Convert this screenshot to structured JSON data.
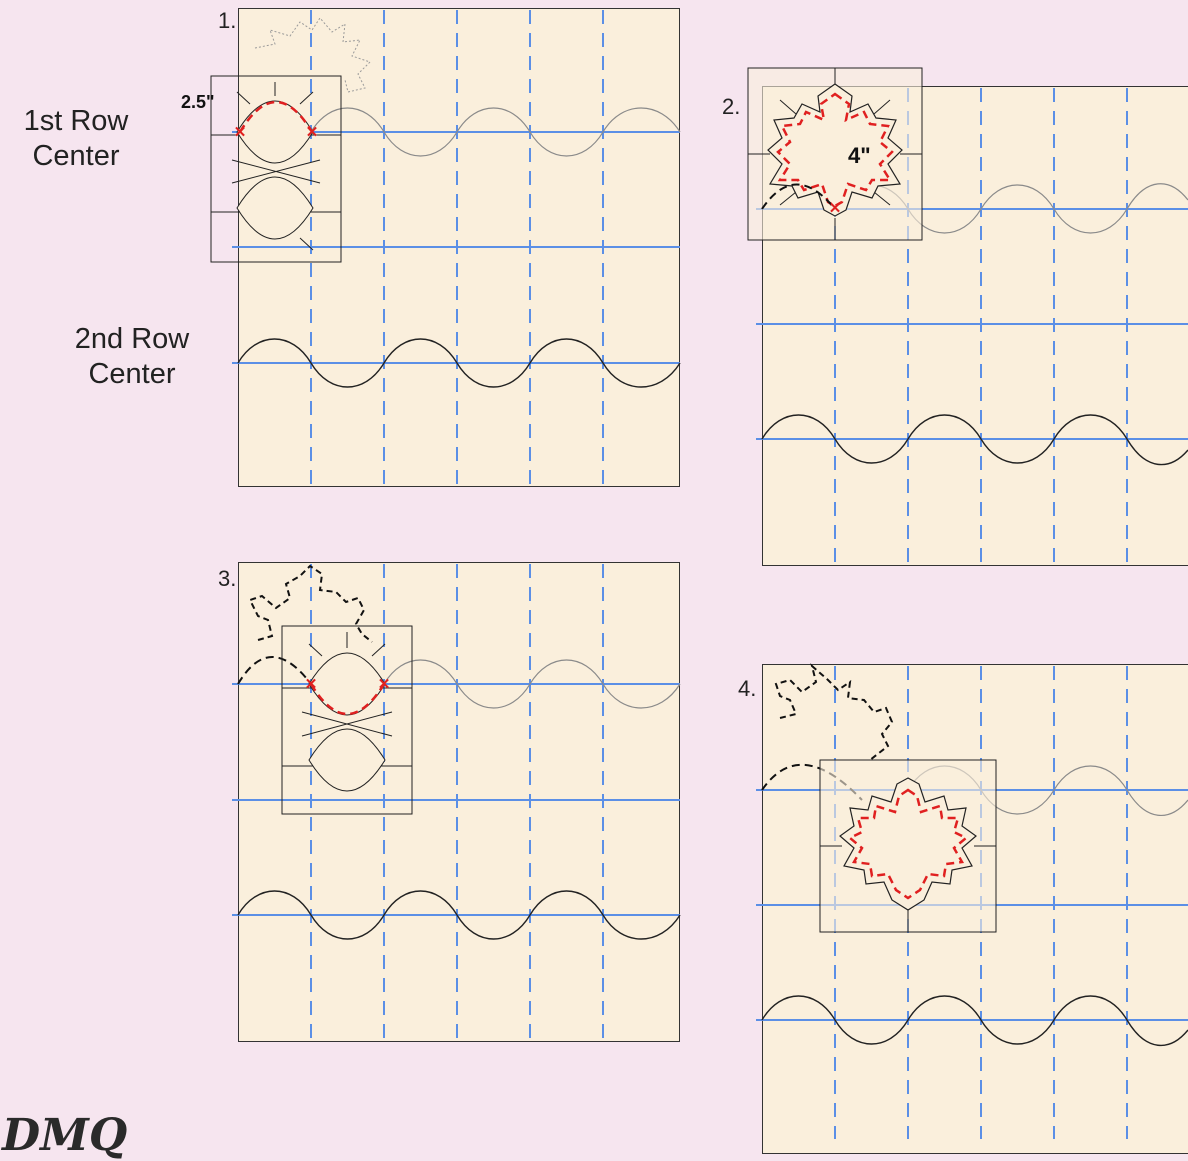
{
  "steps": [
    {
      "number": "1.",
      "dimension": "2.5\""
    },
    {
      "number": "2.",
      "dimension": "4\""
    },
    {
      "number": "3."
    },
    {
      "number": "4."
    }
  ],
  "row_labels": {
    "first_row_line1": "1st Row",
    "first_row_line2": "Center",
    "second_row_line1": "2nd Row",
    "second_row_line2": "Center"
  },
  "logo_text": "DMQ",
  "colors": {
    "background": "#f6e5ef",
    "fabric": "#faefdc",
    "grid_line": "#5b8fe6",
    "stitch_red": "#e02020",
    "ink": "#222222"
  }
}
